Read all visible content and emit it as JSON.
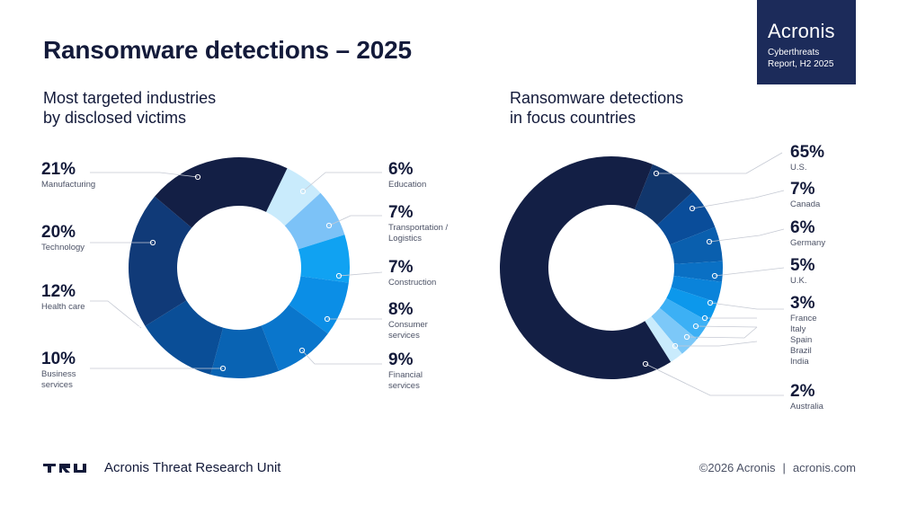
{
  "title": "Ransomware detections – 2025",
  "brand": {
    "name": "Acronis",
    "report_line1": "Cyberthreats",
    "report_line2": "Report, H2 2025"
  },
  "left_chart": {
    "subtitle_line1": "Most targeted industries",
    "subtitle_line2": "by disclosed victims"
  },
  "right_chart": {
    "subtitle_line1": "Ransomware detections",
    "subtitle_line2": "in focus countries"
  },
  "chart_data": [
    {
      "type": "pie",
      "donut": true,
      "title": "Most targeted industries by disclosed victims",
      "slices": [
        {
          "label": "Manufacturing",
          "value": 21,
          "value_label": "21%",
          "color": "#131f45"
        },
        {
          "label": "Education",
          "value": 6,
          "value_label": "6%",
          "color": "#c9ebfc"
        },
        {
          "label": "Transportation / Logistics",
          "value": 7,
          "value_label": "7%",
          "color": "#7cc2f7"
        },
        {
          "label": "Construction",
          "value": 7,
          "value_label": "7%",
          "color": "#10a2f2"
        },
        {
          "label": "Consumer services",
          "value": 8,
          "value_label": "8%",
          "color": "#0b8ee6"
        },
        {
          "label": "Financial services",
          "value": 9,
          "value_label": "9%",
          "color": "#0a76cc"
        },
        {
          "label": "Business services",
          "value": 10,
          "value_label": "10%",
          "color": "#0963b3"
        },
        {
          "label": "Health care",
          "value": 12,
          "value_label": "12%",
          "color": "#0a4e97"
        },
        {
          "label": "Technology",
          "value": 20,
          "value_label": "20%",
          "color": "#103a78"
        }
      ]
    },
    {
      "type": "pie",
      "donut": true,
      "title": "Ransomware detections in focus countries",
      "slices": [
        {
          "label": "U.S.",
          "value": 65,
          "value_label": "65%",
          "color": "#131f45"
        },
        {
          "label": "Canada",
          "value": 7,
          "value_label": "7%",
          "color": "#11366c"
        },
        {
          "label": "Germany",
          "value": 6,
          "value_label": "6%",
          "color": "#0a4d9a"
        },
        {
          "label": "U.K.",
          "value": 5,
          "value_label": "5%",
          "color": "#0a5fae"
        },
        {
          "label": "France",
          "value": 3,
          "value_label": "3%",
          "color": "#0a70c4"
        },
        {
          "label": "Italy",
          "value": 3,
          "value_label": "3%",
          "color": "#0a83da"
        },
        {
          "label": "Spain",
          "value": 3,
          "value_label": "3%",
          "color": "#0c98ec"
        },
        {
          "label": "Brazil",
          "value": 3,
          "value_label": "3%",
          "color": "#3cb0f5"
        },
        {
          "label": "India",
          "value": 3,
          "value_label": "3%",
          "color": "#7cc8f8"
        },
        {
          "label": "Australia",
          "value": 2,
          "value_label": "2%",
          "color": "#c9ebfc"
        }
      ],
      "grouped_labels": [
        {
          "value_label": "65%",
          "names": [
            "U.S."
          ]
        },
        {
          "value_label": "7%",
          "names": [
            "Canada"
          ]
        },
        {
          "value_label": "6%",
          "names": [
            "Germany"
          ]
        },
        {
          "value_label": "5%",
          "names": [
            "U.K."
          ]
        },
        {
          "value_label": "3%",
          "names": [
            "France",
            "Italy",
            "Spain",
            "Brazil",
            "India"
          ]
        },
        {
          "value_label": "2%",
          "names": [
            "Australia"
          ]
        }
      ]
    }
  ],
  "footer": {
    "unit_name": "Acronis Threat Research Unit",
    "copyright": "©2026 Acronis",
    "separator": "|",
    "website": "acronis.com"
  }
}
